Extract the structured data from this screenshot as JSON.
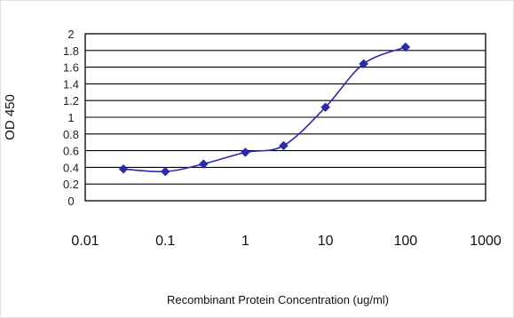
{
  "chart_data": {
    "type": "line",
    "title": "",
    "xlabel": "Recombinant Protein Concentration (ug/ml)",
    "ylabel": "OD 450",
    "x_scale": "log",
    "xlim": [
      0.01,
      1000
    ],
    "ylim": [
      0,
      2
    ],
    "x_ticks": [
      0.01,
      0.1,
      1,
      10,
      100,
      1000
    ],
    "x_tick_labels": [
      "0.01",
      "0.1",
      "1",
      "10",
      "100",
      "1000"
    ],
    "y_ticks": [
      0,
      0.2,
      0.4,
      0.6,
      0.8,
      1,
      1.2,
      1.4,
      1.6,
      1.8,
      2
    ],
    "y_tick_labels": [
      "0",
      "0.2",
      "0.4",
      "0.6",
      "0.8",
      "1",
      "1.2",
      "1.4",
      "1.6",
      "1.8",
      "2"
    ],
    "grid": "horizontal",
    "legend": "none",
    "series": [
      {
        "color": "#2a2ab0",
        "marker": "diamond",
        "x": [
          0.03,
          0.1,
          0.3,
          1,
          3,
          10,
          30,
          100
        ],
        "y": [
          0.38,
          0.35,
          0.44,
          0.58,
          0.66,
          1.12,
          1.64,
          1.84
        ]
      }
    ]
  }
}
